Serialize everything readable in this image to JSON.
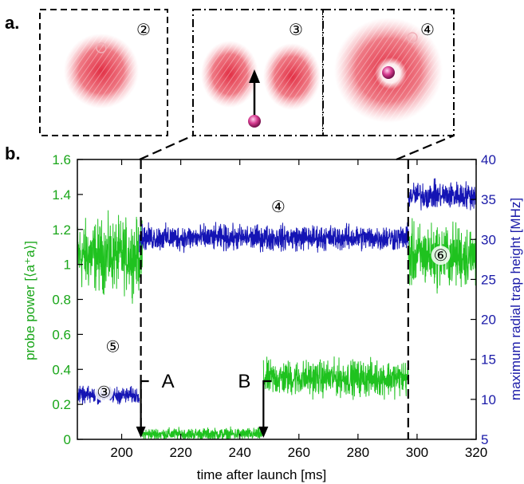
{
  "panel_labels": {
    "a": "a.",
    "b": "b."
  },
  "insets": [
    {
      "marker": "②",
      "style": "dashed"
    },
    {
      "marker": "③",
      "style": "dash-dot"
    },
    {
      "marker": "④",
      "style": "dash-dot"
    }
  ],
  "colors": {
    "probe": "#1fc21f",
    "trap": "#1414b4",
    "axis_left": "#19a619",
    "axis_right": "#1a1aa8",
    "cloud": "#e0233a",
    "atom": "#d63a8f"
  },
  "chart_data": {
    "type": "line",
    "xlabel": "time after launch [ms]",
    "ylabel_left": "probe power [⟨a⁺a⟩]",
    "ylabel_right": "maximum radial trap height [MHz]",
    "xlim": [
      185,
      320
    ],
    "ylim_left": [
      0,
      1.6
    ],
    "ylim_right": [
      5,
      40
    ],
    "x_ticks": [
      "200",
      "220",
      "240",
      "260",
      "280",
      "300",
      "320"
    ],
    "y_ticks_left": [
      "0",
      "0.2",
      "0.4",
      "0.6",
      "0.8",
      "1",
      "1.2",
      "1.4",
      "1.6"
    ],
    "y_ticks_right": [
      "5",
      "10",
      "15",
      "20",
      "25",
      "30",
      "35",
      "40"
    ],
    "grid": false,
    "series": [
      {
        "axis": "left",
        "color": "probe",
        "segments": [
          {
            "x": [
              185,
              207
            ],
            "mean": 1.05,
            "noise": 0.18
          },
          {
            "x": [
              207,
              248
            ],
            "mean": 0.03,
            "noise": 0.03
          },
          {
            "x": [
              248,
              297
            ],
            "mean": 0.35,
            "noise": 0.09
          },
          {
            "x": [
              297,
              320
            ],
            "mean": 1.05,
            "noise": 0.16
          }
        ]
      },
      {
        "axis": "right",
        "color": "trap",
        "segments": [
          {
            "x": [
              185,
              206
            ],
            "mean": 10.5,
            "noise": 0.9
          },
          {
            "x": [
              206,
              297
            ],
            "mean": 30.2,
            "noise": 1.4
          },
          {
            "x": [
              297,
              320
            ],
            "mean": 35.5,
            "noise": 1.5
          }
        ]
      }
    ],
    "markers": [
      {
        "x": 206.5,
        "label": "A"
      },
      {
        "x": 248,
        "label": "B"
      }
    ],
    "annotations": [
      {
        "text": "④",
        "x": 253,
        "y_left": 1.3
      },
      {
        "text": "⑥",
        "x": 308,
        "y_left": 1.02
      },
      {
        "text": "⑤",
        "x": 197,
        "y_left": 0.5
      },
      {
        "text": "③",
        "x": 194,
        "y_left": 0.24
      }
    ]
  }
}
